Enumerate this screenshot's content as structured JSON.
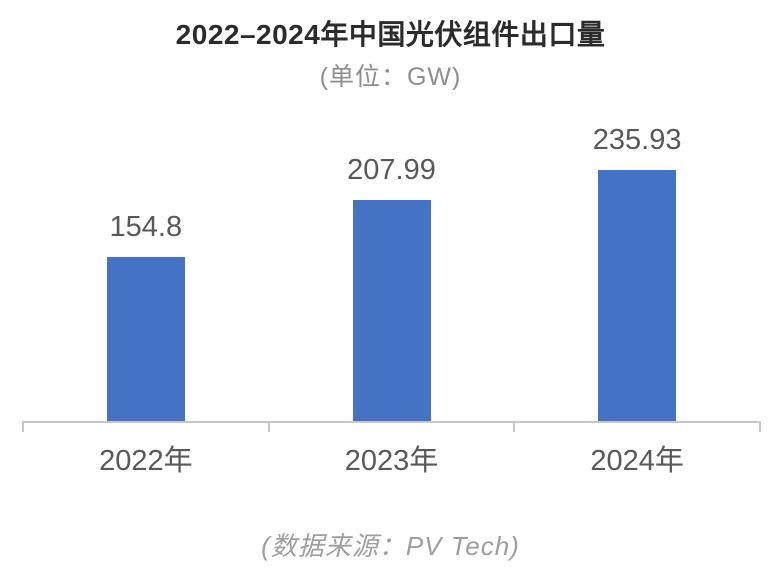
{
  "chart_data": {
    "type": "bar",
    "title": "2022–2024年中国光伏组件出口量",
    "unit_label": "(单位：GW)",
    "source": "(数据来源：PV Tech)",
    "categories": [
      "2022年",
      "2023年",
      "2024年"
    ],
    "values": [
      154.8,
      207.99,
      235.93
    ],
    "value_labels": [
      "154.8",
      "207.99",
      "235.93"
    ],
    "xlabel": "",
    "ylabel": "GW",
    "ylim": [
      0,
      250
    ],
    "grid": false,
    "legend_position": "none",
    "bar_color": "#4472C4",
    "axis_line_color": "#c7c7c7",
    "value_label_color": "#595959",
    "axis_label_color": "#595959",
    "title_color": "#2b2b2b",
    "subtitle_color": "#8e8e8e",
    "source_color": "#9e9e9e"
  }
}
